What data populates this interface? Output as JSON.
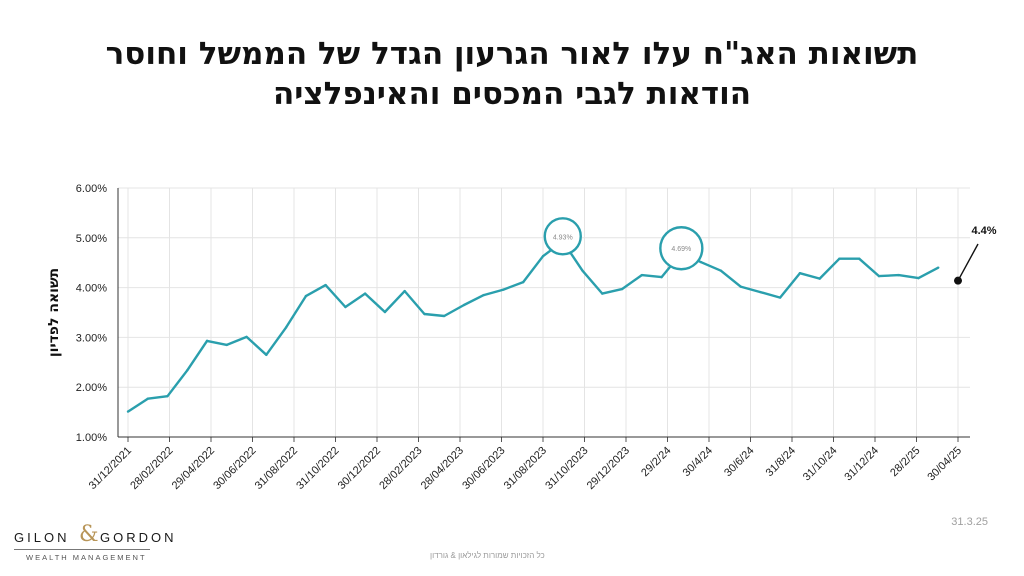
{
  "title_line1": "תשואות האג\"ח עלו לאור הגרעון הגדל של הממשל וחוסר",
  "title_line2": "הודאות לגבי המכסים והאינפלציה",
  "date_label": "31.3.25",
  "footer_text": "כל הזכויות שמורות לגילאון & גורדון",
  "logo": {
    "word1": "GILON",
    "amp": "&",
    "word2": "GORDON",
    "sub": "WEALTH MANAGEMENT"
  },
  "colors": {
    "line": "#2a9fad",
    "grid": "#e4e4e4",
    "axis": "#333333",
    "callout": "#2a9fad"
  },
  "chart_data": {
    "type": "line",
    "ylabel": "תשואה לפדיון",
    "ylim": [
      0.01,
      0.06
    ],
    "yticks": [
      "1.00%",
      "2.00%",
      "3.00%",
      "4.00%",
      "5.00%",
      "6.00%"
    ],
    "xticks": [
      "31/12/2021",
      "28/02/2022",
      "29/04/2022",
      "30/06/2022",
      "31/08/2022",
      "31/10/2022",
      "30/12/2022",
      "28/02/2023",
      "28/04/2023",
      "30/06/2023",
      "31/08/2023",
      "31/10/2023",
      "29/12/2023",
      "29/2/24",
      "30/4/24",
      "30/6/24",
      "31/8/24",
      "31/10/24",
      "31/12/24",
      "28/2/25",
      "30/04/25"
    ],
    "grid": true,
    "series": [
      {
        "values": [
          0.0151,
          0.0177,
          0.0182,
          0.0234,
          0.0293,
          0.0285,
          0.0301,
          0.0265,
          0.032,
          0.0383,
          0.0405,
          0.0361,
          0.0388,
          0.0351,
          0.0393,
          0.0347,
          0.0343,
          0.0365,
          0.0385,
          0.0396,
          0.0411,
          0.0463,
          0.0493,
          0.0434,
          0.0388,
          0.0397,
          0.0425,
          0.0421,
          0.0469,
          0.0451,
          0.0434,
          0.0402,
          0.0391,
          0.038,
          0.0429,
          0.0418,
          0.0458,
          0.0458,
          0.0423,
          0.0425,
          0.0419,
          0.044
        ]
      }
    ],
    "annotations": [
      {
        "text": "4.93%",
        "index": 22
      },
      {
        "text": "4.69%",
        "index": 28
      },
      {
        "text": "4.4%",
        "value": 0.044
      }
    ]
  }
}
